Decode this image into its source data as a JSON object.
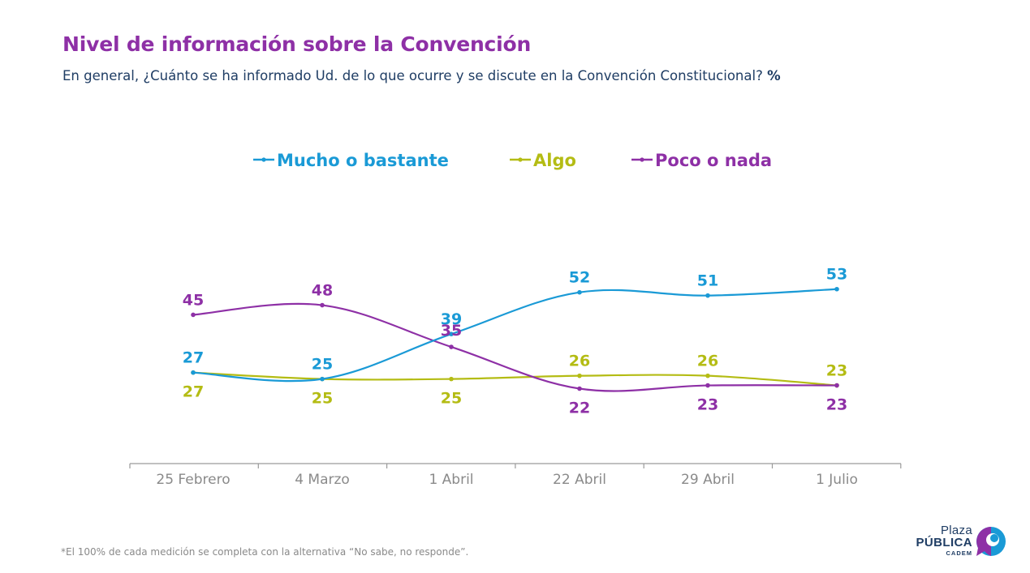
{
  "title": "Nivel de información sobre la Convención",
  "subtitle": {
    "text": "En general, ¿Cuánto se ha informado Ud. de lo que ocurre y se discute en la Convención Constitucional? ",
    "unit": "%"
  },
  "footnote": "*El 100% de cada medición se completa con la alternativa “No sabe, no responde”.",
  "logo": {
    "line1": "Plaza",
    "line2": "PÚBLICA",
    "line3": "CADEM"
  },
  "chart_data": {
    "type": "line",
    "title": "",
    "xlabel": "",
    "ylabel": "",
    "categories": [
      "25 Febrero",
      "4 Marzo",
      "1 Abril",
      "22 Abril",
      "29 Abril",
      "1 Julio"
    ],
    "series": [
      {
        "name": "Mucho o bastante",
        "color": "#1a9ad6",
        "values": [
          27,
          25,
          39,
          52,
          51,
          53
        ]
      },
      {
        "name": "Algo",
        "color": "#b4bc14",
        "values": [
          27,
          25,
          25,
          26,
          26,
          23
        ]
      },
      {
        "name": "Poco o nada",
        "color": "#8e30a6",
        "values": [
          45,
          48,
          35,
          22,
          23,
          23
        ]
      }
    ],
    "legend": "top",
    "grid": false,
    "y_axis_visible": false
  }
}
